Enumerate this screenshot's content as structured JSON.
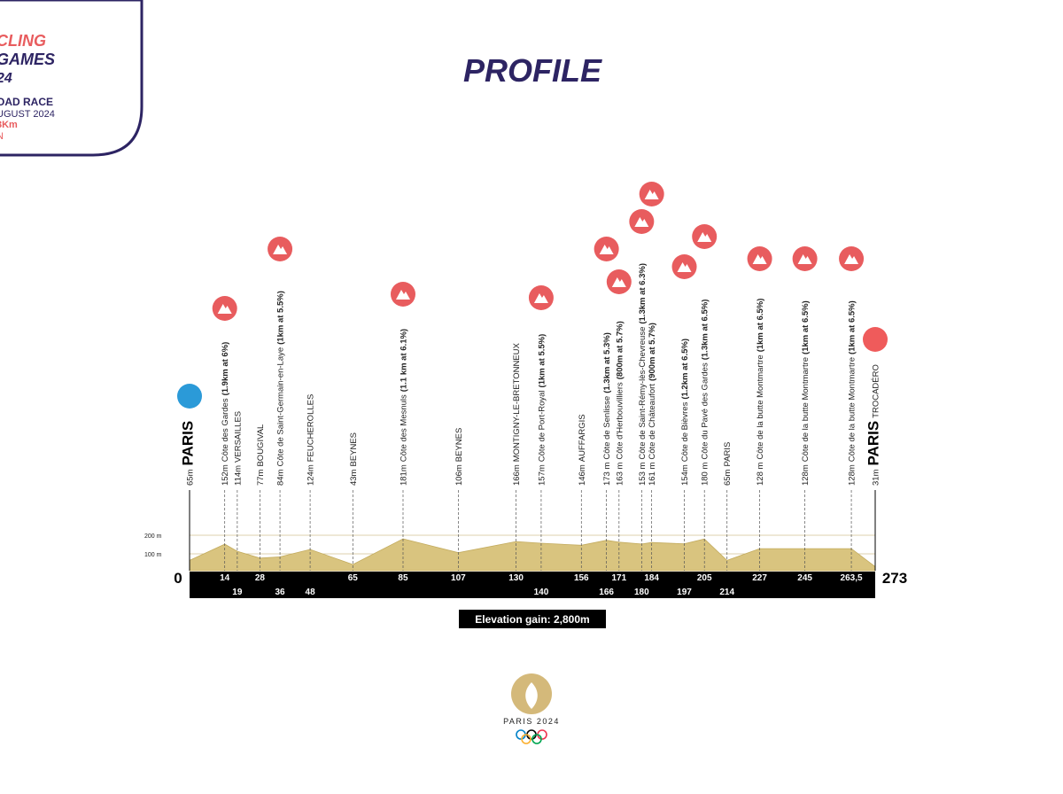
{
  "header": {
    "lines": [
      "CLING",
      "GAMES",
      "24",
      "OAD RACE",
      "UGUST 2024",
      "3Km",
      "N"
    ]
  },
  "chart_data": {
    "type": "profile",
    "title": "PROFILE",
    "footer": "Elevation gain: 2,800m",
    "logo_text": "PARIS 2024",
    "xlim": [
      0,
      273
    ],
    "yticks": [
      {
        "value": 200,
        "label": "200 m"
      },
      {
        "value": 100,
        "label": "100 m"
      }
    ],
    "waypoints": [
      {
        "km": 0,
        "elevation": 65,
        "elevation_label": "65m",
        "name": "PARIS"
      },
      {
        "km": 14,
        "elevation": 152,
        "elevation_label": "152m",
        "name": "Côte des Gardes",
        "detail": "(1.9km at 6%)"
      },
      {
        "km": 19,
        "elevation": 114,
        "elevation_label": "114m",
        "name": "VERSAILLES"
      },
      {
        "km": 28,
        "elevation": 77,
        "elevation_label": "77m",
        "name": "BOUGIVAL"
      },
      {
        "km": 36,
        "elevation": 84,
        "elevation_label": "84m",
        "name": "Côte de Saint-Germain-en-Laye",
        "detail": "(1km at 5.5%)"
      },
      {
        "km": 48,
        "elevation": 124,
        "elevation_label": "124m",
        "name": "FEUCHEROLLES"
      },
      {
        "km": 65,
        "elevation": 43,
        "elevation_label": "43m",
        "name": "BEYNES"
      },
      {
        "km": 85,
        "elevation": 181,
        "elevation_label": "181m",
        "name": "Côte des Mesnuls",
        "detail": "(1.1 km at 6.1%)"
      },
      {
        "km": 107,
        "elevation": 106,
        "elevation_label": "106m",
        "name": "BEYNES"
      },
      {
        "km": 130,
        "elevation": 166,
        "elevation_label": "166m",
        "name": "MONTIGNY-LE-BRETONNEUX"
      },
      {
        "km": 140,
        "elevation": 157,
        "elevation_label": "157m",
        "name": "Côte de Port-Royal",
        "detail": "(1km at 5.5%)"
      },
      {
        "km": 156,
        "elevation": 146,
        "elevation_label": "146m",
        "name": "AUFFARGIS"
      },
      {
        "km": 166,
        "elevation": 173,
        "elevation_label": "173 m",
        "name": "Côte de Senlisse",
        "detail": "(1.3km at 5.3%)"
      },
      {
        "km": 171,
        "elevation": 163,
        "elevation_label": "163 m",
        "name": "Côte d'Herbouvilliers",
        "detail": "(800m at 5.7%)"
      },
      {
        "km": 180,
        "elevation": 153,
        "elevation_label": "153 m",
        "name": "Côte de Saint-Rémy-lès-Chevreuse",
        "detail": "(1.3km at 6.3%)"
      },
      {
        "km": 184,
        "elevation": 161,
        "elevation_label": "161 m",
        "name": "Côte de Châteaufort",
        "detail": "(900m at 5.7%)"
      },
      {
        "km": 197,
        "elevation": 154,
        "elevation_label": "154m",
        "name": "Côte de Bièvres",
        "detail": "(1.2km at 6.5%)"
      },
      {
        "km": 205,
        "elevation": 180,
        "elevation_label": "180 m",
        "name": "Côte du Pavé des Gardes",
        "detail": "(1.3km at 6.5%)"
      },
      {
        "km": 214,
        "elevation": 65,
        "elevation_label": "65m",
        "name": "PARIS"
      },
      {
        "km": 227,
        "elevation": 128,
        "elevation_label": "128 m",
        "name": "Côte de la butte Montmartre",
        "detail": "(1km at 6.5%)"
      },
      {
        "km": 245,
        "elevation": 128,
        "elevation_label": "128m",
        "name": "Côte de la butte Montmartre",
        "detail": "(1km at 6.5%)"
      },
      {
        "km": 263.5,
        "km_label": "263,5",
        "elevation": 128,
        "elevation_label": "128m",
        "name": "Côte de la butte Montmartre",
        "detail": "(1km at 6.5%)"
      },
      {
        "km": 273,
        "elevation": 31,
        "elevation_label": "31m",
        "name": "PARIS",
        "subname": "TROCADÉRO"
      }
    ]
  }
}
